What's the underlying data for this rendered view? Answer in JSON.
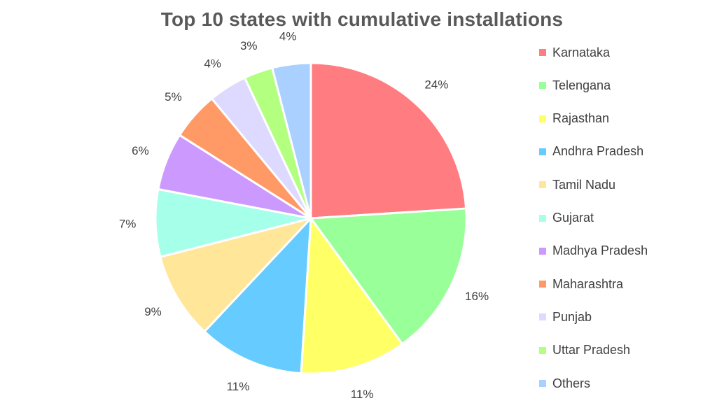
{
  "chart_data": {
    "type": "pie",
    "title": "Top 10 states with cumulative installations",
    "legend_position": "right",
    "slices": [
      {
        "name": "Karnataka",
        "value": 24,
        "label": "24%",
        "color": "#FF7C80"
      },
      {
        "name": "Telengana",
        "value": 16,
        "label": "16%",
        "color": "#99FF99"
      },
      {
        "name": "Rajasthan",
        "value": 11,
        "label": "11%",
        "color": "#FFFF66"
      },
      {
        "name": "Andhra Pradesh",
        "value": 11,
        "label": "11%",
        "color": "#66CCFF"
      },
      {
        "name": "Tamil Nadu",
        "value": 9,
        "label": "9%",
        "color": "#FFE699"
      },
      {
        "name": "Gujarat",
        "value": 7,
        "label": "7%",
        "color": "#A6FFE9"
      },
      {
        "name": "Madhya Pradesh",
        "value": 6,
        "label": "6%",
        "color": "#CC99FF"
      },
      {
        "name": "Maharashtra",
        "value": 5,
        "label": "5%",
        "color": "#FF9966"
      },
      {
        "name": "Punjab",
        "value": 4,
        "label": "4%",
        "color": "#DDD9FF"
      },
      {
        "name": "Uttar Pradesh",
        "value": 3,
        "label": "3%",
        "color": "#B3FF80"
      },
      {
        "name": "Others",
        "value": 4,
        "label": "4%",
        "color": "#A9D0FF"
      }
    ]
  }
}
